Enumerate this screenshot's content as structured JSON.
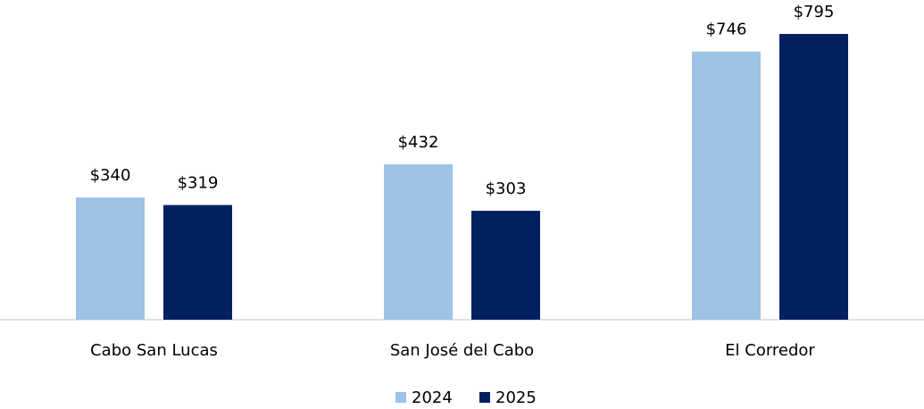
{
  "chart_data": {
    "type": "bar",
    "categories": [
      "Cabo San Lucas",
      "San José del Cabo",
      "El Corredor"
    ],
    "series": [
      {
        "name": "2024",
        "color": "#9dc3e6",
        "values": [
          340,
          432,
          746
        ],
        "value_labels": [
          "$340",
          "$432",
          "$746"
        ]
      },
      {
        "name": "2025",
        "color": "#002060",
        "values": [
          319,
          303,
          795
        ],
        "value_labels": [
          "$319",
          "$303",
          "$795"
        ]
      }
    ],
    "legend": "bottom"
  }
}
